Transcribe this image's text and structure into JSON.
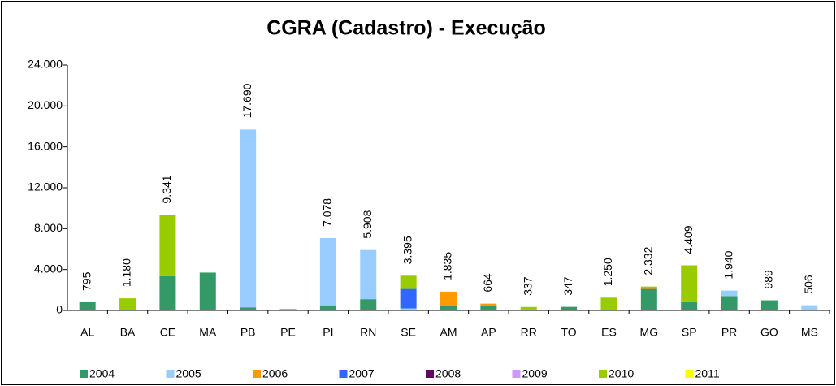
{
  "chart_data": {
    "type": "stacked_bar",
    "title": "CGRA (Cadastro) - Execução",
    "categories": [
      "AL",
      "BA",
      "CE",
      "MA",
      "PB",
      "PE",
      "PI",
      "RN",
      "SE",
      "AM",
      "AP",
      "RR",
      "TO",
      "ES",
      "MG",
      "SP",
      "PR",
      "GO",
      "MS"
    ],
    "series": [
      {
        "name": "2004",
        "color": "#339966",
        "values": [
          795,
          null,
          3341,
          3700,
          300,
          null,
          500,
          1100,
          null,
          500,
          400,
          null,
          347,
          null,
          2100,
          800,
          1400,
          989,
          null
        ]
      },
      {
        "name": "2005",
        "color": "#99ccff",
        "values": [
          null,
          null,
          null,
          null,
          17390,
          null,
          6578,
          4808,
          200,
          null,
          null,
          null,
          null,
          null,
          null,
          null,
          540,
          null,
          506
        ]
      },
      {
        "name": "2006",
        "color": "#ff9900",
        "values": [
          null,
          null,
          null,
          null,
          null,
          150,
          null,
          null,
          null,
          1335,
          264,
          null,
          null,
          null,
          100,
          null,
          null,
          null,
          null
        ]
      },
      {
        "name": "2007",
        "color": "#3366ff",
        "values": [
          null,
          null,
          null,
          null,
          null,
          null,
          null,
          null,
          1900,
          null,
          null,
          null,
          null,
          null,
          null,
          null,
          null,
          null,
          null
        ]
      },
      {
        "name": "2008",
        "color": "#660066",
        "values": [
          null,
          null,
          null,
          null,
          null,
          null,
          null,
          null,
          null,
          null,
          null,
          null,
          null,
          null,
          null,
          null,
          null,
          null,
          null
        ]
      },
      {
        "name": "2009",
        "color": "#cc99ff",
        "values": [
          null,
          null,
          null,
          null,
          null,
          null,
          null,
          null,
          null,
          null,
          null,
          null,
          null,
          null,
          null,
          null,
          null,
          null,
          null
        ]
      },
      {
        "name": "2010",
        "color": "#99cc00",
        "values": [
          null,
          1180,
          6000,
          null,
          null,
          null,
          null,
          null,
          1295,
          null,
          null,
          337,
          null,
          1250,
          132,
          3609,
          null,
          null,
          null
        ]
      },
      {
        "name": "2011",
        "color": "#ffff00",
        "values": [
          null,
          null,
          null,
          null,
          null,
          null,
          null,
          null,
          null,
          null,
          null,
          null,
          null,
          null,
          null,
          null,
          null,
          null,
          null
        ]
      }
    ],
    "totals": {
      "values": [
        795,
        1180,
        9341,
        null,
        17690,
        null,
        7078,
        5908,
        3395,
        1835,
        664,
        337,
        347,
        1250,
        2332,
        4409,
        1940,
        989,
        506
      ],
      "value_labels": [
        "795",
        "1.180",
        "9.341",
        null,
        "17.690",
        null,
        "7.078",
        "5.908",
        "3.395",
        "1.835",
        "664",
        "337",
        "347",
        "1.250",
        "2.332",
        "4.409",
        "1.940",
        "989",
        "506"
      ]
    },
    "ylim": [
      0,
      24000
    ],
    "yticks": [
      0,
      {
        "value": 4000,
        "label": "4.000"
      },
      {
        "value": 8000,
        "label": "8.000"
      },
      {
        "value": 12000,
        "label": "12.000"
      },
      {
        "value": 16000,
        "label": "16.000"
      },
      {
        "value": 20000,
        "label": "20.000"
      },
      {
        "value": 24000,
        "label": "24.000"
      }
    ],
    "grid": false,
    "legend": "bottom"
  }
}
